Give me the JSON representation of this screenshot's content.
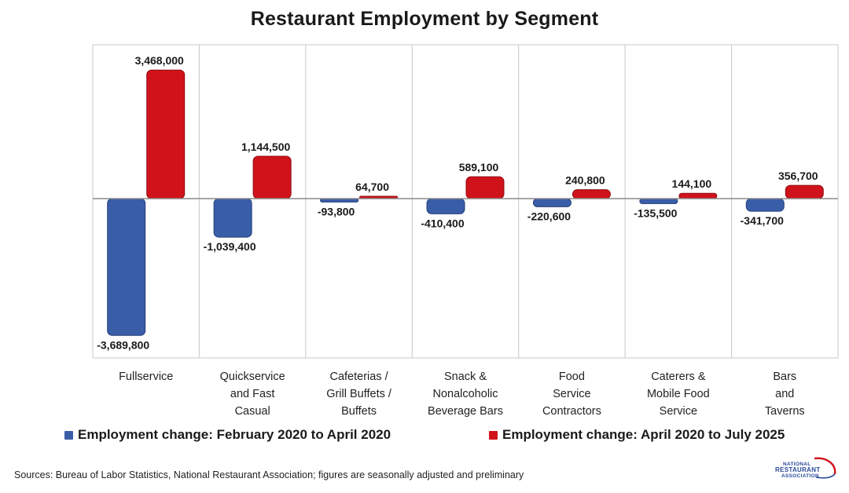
{
  "title": "Restaurant Employment by Segment",
  "source": "Sources: Bureau of Labor Statistics, National Restaurant Association; figures are seasonally adjusted and preliminary",
  "logo": {
    "line1": "NATIONAL",
    "line2": "RESTAURANT",
    "line3": "ASSOCIATION"
  },
  "colors": {
    "series1": "#3a5da8",
    "series2": "#d0121a",
    "grid": "#c8c8c8",
    "axis": "#8a8a8a"
  },
  "chart_data": {
    "type": "bar",
    "title": "Restaurant Employment by Segment",
    "categories": [
      [
        "Fullservice"
      ],
      [
        "Quickservice",
        "and Fast",
        "Casual"
      ],
      [
        "Cafeterias /",
        "Grill Buffets /",
        "Buffets"
      ],
      [
        "Snack &",
        "Nonalcoholic",
        "Beverage Bars"
      ],
      [
        "Food",
        "Service",
        "Contractors"
      ],
      [
        "Caterers &",
        "Mobile Food",
        "Service"
      ],
      [
        "Bars",
        "and",
        "Taverns"
      ]
    ],
    "series": [
      {
        "name": "Employment change: February 2020 to April 2020",
        "values": [
          -3689800,
          -1039400,
          -93800,
          -410400,
          -220600,
          -135500,
          -341700
        ],
        "labels": [
          "-3,689,800",
          "-1,039,400",
          "-93,800",
          "-410,400",
          "-220,600",
          "-135,500",
          "-341,700"
        ]
      },
      {
        "name": "Employment change: April 2020 to July 2025",
        "values": [
          3468000,
          1144500,
          64700,
          589100,
          240800,
          144100,
          356700
        ],
        "labels": [
          "3,468,000",
          "1,144,500",
          "64,700",
          "589,100",
          "240,800",
          "144,100",
          "356,700"
        ]
      }
    ],
    "ylim": [
      -4150000,
      4150000
    ],
    "legend": "bottom",
    "grid": "vertical category separators"
  }
}
